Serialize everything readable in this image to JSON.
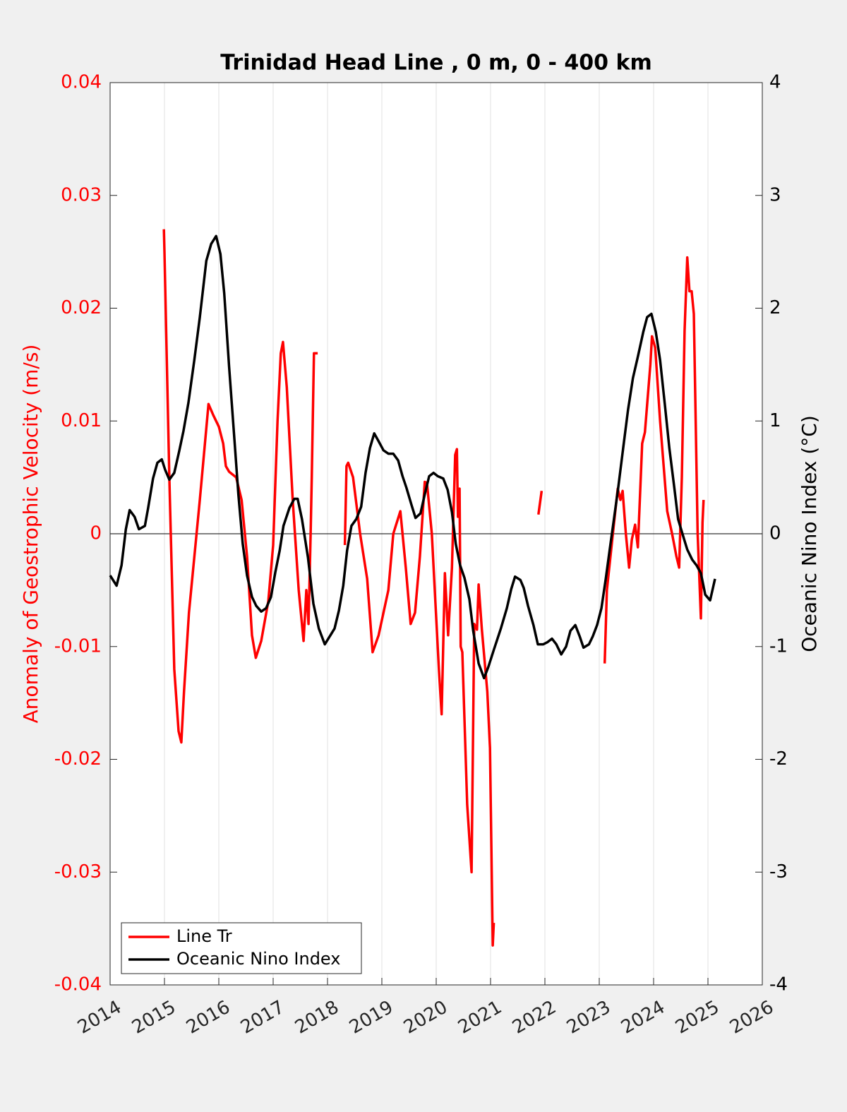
{
  "chart_data": {
    "type": "line",
    "title": "Trinidad Head Line , 0 m, 0 - 400 km",
    "ylabel": "Anomaly of Geostrophic Velocity (m/s)",
    "y2label": "Oceanic Nino Index (°C)",
    "xlim": [
      2014,
      2026
    ],
    "xticks": [
      2014,
      2015,
      2016,
      2017,
      2018,
      2019,
      2020,
      2021,
      2022,
      2023,
      2024,
      2025,
      2026
    ],
    "ylim": [
      -0.04,
      0.04
    ],
    "yticks": [
      -0.04,
      -0.03,
      -0.02,
      -0.01,
      0,
      0.01,
      0.02,
      0.03,
      0.04
    ],
    "y2lim": [
      -4,
      4
    ],
    "y2ticks": [
      -4,
      -3,
      -2,
      -1,
      0,
      1,
      2,
      3,
      4
    ],
    "grid": "x",
    "legend": "lower left",
    "series": [
      {
        "name": "Line Tr",
        "color": "#ff0000",
        "axis": "y",
        "x": [
          2014.99,
          2015.0,
          2015.09,
          2015.18,
          2015.26,
          2015.31,
          2015.36,
          2015.45,
          2015.65,
          2015.81,
          2015.9,
          2016.0,
          2016.08,
          2016.13,
          2016.19,
          2016.32,
          2016.42,
          2016.52,
          2016.61,
          2016.68,
          2016.78,
          2016.91,
          2017.0,
          2017.08,
          2017.14,
          2017.18,
          2017.25,
          2017.36,
          2017.47,
          2017.56,
          2017.61,
          2017.65,
          2017.69,
          2017.71,
          2017.75,
          2017.82,
          null,
          2018.32,
          2018.35,
          2018.38,
          2018.47,
          2018.6,
          2018.73,
          2018.83,
          2018.94,
          2019.03,
          2019.12,
          2019.21,
          2019.34,
          2019.44,
          2019.53,
          2019.61,
          2019.7,
          2019.79,
          2019.83,
          2019.92,
          2020.05,
          2020.1,
          2020.16,
          2020.22,
          2020.29,
          2020.35,
          2020.38,
          2020.4,
          2020.43,
          2020.45,
          2020.48,
          2020.57,
          2020.65,
          2020.7,
          2020.75,
          2020.78,
          2020.84,
          2020.94,
          2020.99,
          2021.04,
          2021.06,
          null,
          2021.88,
          2021.94,
          null,
          2023.1,
          2023.14,
          2023.25,
          2023.34,
          2023.39,
          2023.43,
          2023.49,
          2023.55,
          2023.6,
          2023.66,
          2023.71,
          2023.79,
          2023.84,
          2023.94,
          2023.97,
          2024.03,
          2024.12,
          2024.25,
          2024.34,
          2024.42,
          2024.47,
          2024.52,
          2024.57,
          2024.62,
          2024.66,
          2024.7,
          2024.74,
          2024.81,
          2024.87,
          2024.9,
          2024.92
        ],
        "values": [
          0.027,
          0.025,
          0.005,
          -0.012,
          -0.0175,
          -0.0185,
          -0.014,
          -0.007,
          0.003,
          0.0115,
          0.0105,
          0.0095,
          0.008,
          0.006,
          0.0055,
          0.005,
          0.003,
          -0.002,
          -0.009,
          -0.011,
          -0.0095,
          -0.006,
          -0.001,
          0.01,
          0.016,
          0.017,
          0.013,
          0.003,
          -0.005,
          -0.0095,
          -0.005,
          -0.008,
          0.0,
          0.005,
          0.016,
          0.016,
          null,
          -0.001,
          0.006,
          0.0063,
          0.005,
          0.0,
          -0.004,
          -0.0105,
          -0.009,
          -0.007,
          -0.005,
          0.0,
          0.002,
          -0.003,
          -0.008,
          -0.007,
          -0.002,
          0.0046,
          0.0045,
          0.0,
          -0.012,
          -0.016,
          -0.0035,
          -0.009,
          -0.003,
          0.007,
          0.0075,
          0.0015,
          0.004,
          -0.01,
          -0.0105,
          -0.024,
          -0.03,
          -0.008,
          -0.0085,
          -0.0045,
          -0.0085,
          -0.014,
          -0.019,
          -0.0365,
          -0.0345,
          null,
          0.0017,
          0.0038,
          null,
          -0.0115,
          -0.005,
          0.0,
          0.004,
          0.003,
          0.0038,
          0.0,
          -0.003,
          -0.0005,
          0.0008,
          -0.0012,
          0.008,
          0.009,
          0.015,
          0.0175,
          0.0165,
          0.01,
          0.002,
          0.0,
          -0.002,
          -0.003,
          0.005,
          0.018,
          0.0245,
          0.0215,
          0.0215,
          0.0195,
          0.0,
          -0.0075,
          0.001,
          0.003
        ]
      },
      {
        "name": "Oceanic Nino Index",
        "color": "#000000",
        "axis": "y2",
        "x": [
          2014.0,
          2014.12,
          2014.21,
          2014.29,
          2014.36,
          2014.45,
          2014.53,
          2014.64,
          2014.7,
          2014.79,
          2014.87,
          2014.95,
          2015.01,
          2015.09,
          2015.18,
          2015.27,
          2015.35,
          2015.44,
          2015.55,
          2015.65,
          2015.77,
          2015.86,
          2015.95,
          2016.03,
          2016.1,
          2016.19,
          2016.29,
          2016.36,
          2016.44,
          2016.52,
          2016.61,
          2016.69,
          2016.78,
          2016.87,
          2016.96,
          2017.04,
          2017.12,
          2017.19,
          2017.3,
          2017.39,
          2017.45,
          2017.53,
          2017.64,
          2017.74,
          2017.84,
          2017.95,
          2018.04,
          2018.13,
          2018.21,
          2018.29,
          2018.36,
          2018.44,
          2018.53,
          2018.62,
          2018.7,
          2018.78,
          2018.86,
          2018.94,
          2019.03,
          2019.12,
          2019.21,
          2019.3,
          2019.38,
          2019.45,
          2019.55,
          2019.62,
          2019.71,
          2019.79,
          2019.87,
          2019.95,
          2020.03,
          2020.13,
          2020.21,
          2020.29,
          2020.36,
          2020.44,
          2020.52,
          2020.61,
          2020.68,
          2020.78,
          2020.88,
          2020.96,
          2021.06,
          2021.19,
          2021.3,
          2021.38,
          2021.45,
          2021.55,
          2021.61,
          2021.69,
          2021.79,
          2021.87,
          2021.97,
          2022.05,
          2022.13,
          2022.21,
          2022.3,
          2022.39,
          2022.47,
          2022.56,
          2022.64,
          2022.71,
          2022.81,
          2022.88,
          2022.96,
          2023.04,
          2023.12,
          2023.19,
          2023.27,
          2023.35,
          2023.44,
          2023.53,
          2023.62,
          2023.71,
          2023.81,
          2023.88,
          2023.96,
          2024.04,
          2024.12,
          2024.21,
          2024.29,
          2024.38,
          2024.45,
          2024.55,
          2024.62,
          2024.71,
          2024.79,
          2024.87,
          2024.95,
          2025.04,
          2025.13
        ],
        "values": [
          -0.37,
          -0.46,
          -0.28,
          0.04,
          0.21,
          0.15,
          0.04,
          0.07,
          0.23,
          0.49,
          0.63,
          0.66,
          0.57,
          0.48,
          0.54,
          0.73,
          0.91,
          1.16,
          1.54,
          1.92,
          2.42,
          2.57,
          2.64,
          2.48,
          2.13,
          1.48,
          0.82,
          0.35,
          -0.09,
          -0.37,
          -0.56,
          -0.64,
          -0.69,
          -0.66,
          -0.56,
          -0.34,
          -0.15,
          0.07,
          0.23,
          0.31,
          0.31,
          0.13,
          -0.21,
          -0.62,
          -0.84,
          -0.98,
          -0.91,
          -0.84,
          -0.68,
          -0.46,
          -0.15,
          0.07,
          0.13,
          0.24,
          0.54,
          0.76,
          0.89,
          0.82,
          0.74,
          0.71,
          0.71,
          0.65,
          0.51,
          0.41,
          0.25,
          0.14,
          0.18,
          0.35,
          0.51,
          0.54,
          0.51,
          0.49,
          0.39,
          0.19,
          -0.09,
          -0.28,
          -0.39,
          -0.58,
          -0.86,
          -1.15,
          -1.28,
          -1.18,
          -1.03,
          -0.84,
          -0.66,
          -0.49,
          -0.38,
          -0.41,
          -0.48,
          -0.64,
          -0.81,
          -0.98,
          -0.98,
          -0.96,
          -0.93,
          -0.98,
          -1.07,
          -1.0,
          -0.86,
          -0.81,
          -0.91,
          -1.01,
          -0.98,
          -0.91,
          -0.81,
          -0.66,
          -0.4,
          -0.15,
          0.13,
          0.41,
          0.76,
          1.1,
          1.38,
          1.57,
          1.79,
          1.92,
          1.95,
          1.79,
          1.54,
          1.13,
          0.76,
          0.41,
          0.13,
          -0.03,
          -0.14,
          -0.23,
          -0.28,
          -0.35,
          -0.54,
          -0.59,
          -0.4
        ]
      }
    ]
  }
}
